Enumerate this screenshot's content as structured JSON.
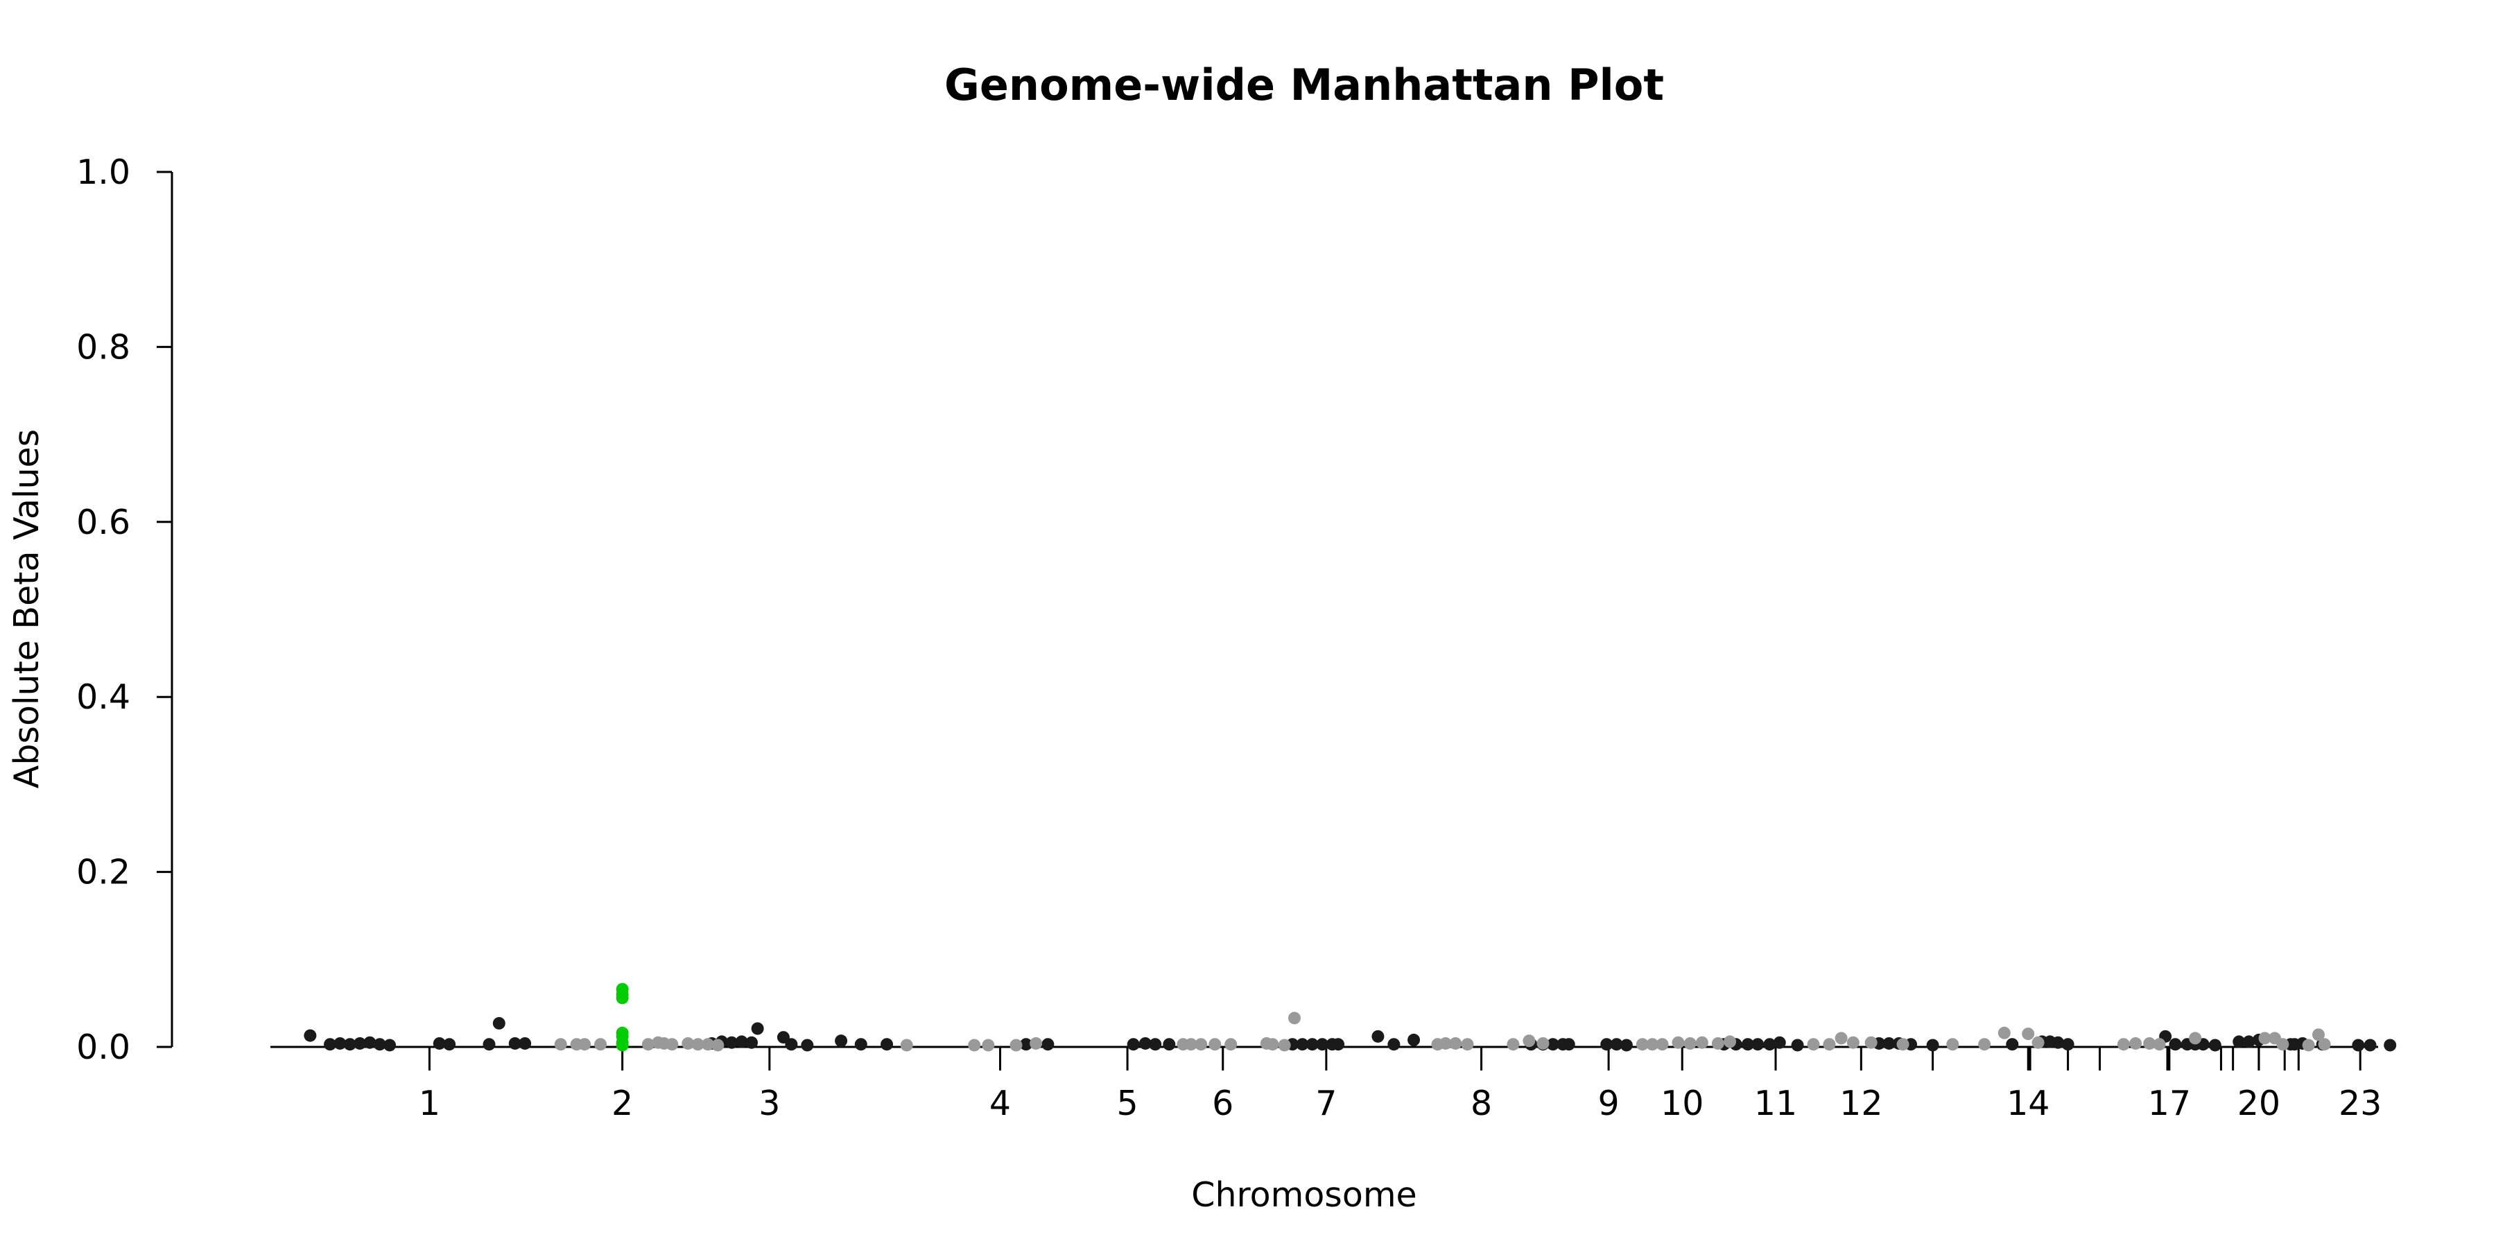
{
  "chart_data": {
    "type": "scatter",
    "title": "Genome-wide Manhattan Plot",
    "xlabel": "Chromosome",
    "ylabel": "Absolute Beta Values",
    "ylim": [
      0,
      1
    ],
    "yticks": [
      "0.0",
      "0.2",
      "0.4",
      "0.6",
      "0.8",
      "1.0"
    ],
    "xlim": [
      0,
      1200
    ],
    "grid": false,
    "legend": "none",
    "colors": {
      "odd": "#1a1a1a",
      "even": "#999999",
      "highlight": "#00cc00"
    },
    "chromosome_ticks": [
      {
        "label": "1",
        "pos": 30
      },
      {
        "label": "2",
        "pos": 127
      },
      {
        "label": "3",
        "pos": 201
      },
      {
        "label": "4",
        "pos": 317
      },
      {
        "label": "5",
        "pos": 381
      },
      {
        "label": "6",
        "pos": 429
      },
      {
        "label": "7",
        "pos": 481
      },
      {
        "label": "8",
        "pos": 559
      },
      {
        "label": "9",
        "pos": 623
      },
      {
        "label": "10",
        "pos": 660
      },
      {
        "label": "11",
        "pos": 707
      },
      {
        "label": "12",
        "pos": 750
      },
      {
        "label": "",
        "pos": 786
      },
      {
        "label": "",
        "pos": 835
      },
      {
        "label": "14",
        "pos": 834
      },
      {
        "label": "",
        "pos": 854
      },
      {
        "label": "",
        "pos": 870
      },
      {
        "label": "",
        "pos": 904
      },
      {
        "label": "17",
        "pos": 905
      },
      {
        "label": "",
        "pos": 931
      },
      {
        "label": "",
        "pos": 937
      },
      {
        "label": "",
        "pos": 950
      },
      {
        "label": "20",
        "pos": 950
      },
      {
        "label": "",
        "pos": 963
      },
      {
        "label": "",
        "pos": 970
      },
      {
        "label": "23",
        "pos": 1001
      }
    ],
    "series": [
      {
        "color_role": "odd",
        "points": [
          [
            -30,
            0.013
          ],
          [
            -20,
            0.003
          ],
          [
            -15,
            0.004
          ],
          [
            -10,
            0.003
          ],
          [
            -5,
            0.004
          ],
          [
            0,
            0.005
          ],
          [
            5,
            0.003
          ],
          [
            10,
            0.002
          ],
          [
            35,
            0.004
          ],
          [
            40,
            0.003
          ],
          [
            60,
            0.003
          ],
          [
            65,
            0.027
          ],
          [
            73,
            0.004
          ],
          [
            78,
            0.004
          ],
          [
            172,
            0.004
          ],
          [
            177,
            0.006
          ],
          [
            182,
            0.005
          ],
          [
            187,
            0.006
          ],
          [
            192,
            0.005
          ],
          [
            195,
            0.021
          ],
          [
            208,
            0.011
          ],
          [
            212,
            0.003
          ],
          [
            220,
            0.002
          ],
          [
            237,
            0.007
          ],
          [
            247,
            0.003
          ],
          [
            260,
            0.003
          ],
          [
            330,
            0.003
          ],
          [
            341,
            0.003
          ],
          [
            402,
            0.003
          ],
          [
            384,
            0.003
          ],
          [
            390,
            0.004
          ],
          [
            395,
            0.003
          ],
          [
            464,
            0.003
          ],
          [
            469,
            0.003
          ],
          [
            474,
            0.003
          ],
          [
            479,
            0.003
          ],
          [
            484,
            0.003
          ],
          [
            487,
            0.003
          ],
          [
            507,
            0.012
          ],
          [
            515,
            0.003
          ],
          [
            525,
            0.008
          ],
          [
            584,
            0.003
          ],
          [
            590,
            0.003
          ],
          [
            595,
            0.003
          ],
          [
            600,
            0.003
          ],
          [
            603,
            0.003
          ],
          [
            622,
            0.003
          ],
          [
            627,
            0.003
          ],
          [
            632,
            0.002
          ],
          [
            681,
            0.003
          ],
          [
            687,
            0.003
          ],
          [
            693,
            0.003
          ],
          [
            698,
            0.003
          ],
          [
            704,
            0.003
          ],
          [
            709,
            0.005
          ],
          [
            718,
            0.002
          ],
          [
            759,
            0.004
          ],
          [
            764,
            0.004
          ],
          [
            769,
            0.004
          ],
          [
            775,
            0.003
          ],
          [
            786,
            0.002
          ],
          [
            826,
            0.003
          ],
          [
            841,
            0.006
          ],
          [
            845,
            0.006
          ],
          [
            849,
            0.005
          ],
          [
            854,
            0.003
          ],
          [
            903,
            0.012
          ],
          [
            908,
            0.003
          ],
          [
            914,
            0.003
          ],
          [
            918,
            0.003
          ],
          [
            922,
            0.003
          ],
          [
            928,
            0.002
          ],
          [
            940,
            0.006
          ],
          [
            945,
            0.006
          ],
          [
            950,
            0.008
          ],
          [
            966,
            0.003
          ],
          [
            968,
            0.003
          ],
          [
            972,
            0.004
          ],
          [
            982,
            0.003
          ],
          [
            1000,
            0.002
          ],
          [
            1006,
            0.002
          ],
          [
            1016,
            0.002
          ]
        ]
      },
      {
        "color_role": "even",
        "points": [
          [
            96,
            0.003
          ],
          [
            104,
            0.003
          ],
          [
            108,
            0.003
          ],
          [
            116,
            0.003
          ],
          [
            140,
            0.003
          ],
          [
            145,
            0.005
          ],
          [
            148,
            0.004
          ],
          [
            152,
            0.003
          ],
          [
            160,
            0.004
          ],
          [
            165,
            0.003
          ],
          [
            170,
            0.003
          ],
          [
            175,
            0.002
          ],
          [
            270,
            0.002
          ],
          [
            304,
            0.002
          ],
          [
            311,
            0.002
          ],
          [
            325,
            0.002
          ],
          [
            335,
            0.004
          ],
          [
            425,
            0.003
          ],
          [
            433,
            0.003
          ],
          [
            409,
            0.003
          ],
          [
            413,
            0.003
          ],
          [
            418,
            0.003
          ],
          [
            451,
            0.004
          ],
          [
            454,
            0.003
          ],
          [
            460,
            0.002
          ],
          [
            465,
            0.033
          ],
          [
            537,
            0.003
          ],
          [
            541,
            0.004
          ],
          [
            546,
            0.004
          ],
          [
            552,
            0.003
          ],
          [
            575,
            0.003
          ],
          [
            583,
            0.007
          ],
          [
            590,
            0.004
          ],
          [
            640,
            0.003
          ],
          [
            645,
            0.003
          ],
          [
            650,
            0.003
          ],
          [
            658,
            0.005
          ],
          [
            664,
            0.004
          ],
          [
            670,
            0.005
          ],
          [
            678,
            0.004
          ],
          [
            684,
            0.006
          ],
          [
            726,
            0.003
          ],
          [
            734,
            0.003
          ],
          [
            740,
            0.01
          ],
          [
            746,
            0.005
          ],
          [
            755,
            0.005
          ],
          [
            771,
            0.003
          ],
          [
            796,
            0.003
          ],
          [
            812,
            0.003
          ],
          [
            822,
            0.016
          ],
          [
            834,
            0.015
          ],
          [
            839,
            0.005
          ],
          [
            882,
            0.003
          ],
          [
            888,
            0.004
          ],
          [
            895,
            0.004
          ],
          [
            900,
            0.003
          ],
          [
            918,
            0.01
          ],
          [
            953,
            0.01
          ],
          [
            958,
            0.01
          ],
          [
            962,
            0.003
          ],
          [
            975,
            0.002
          ],
          [
            980,
            0.014
          ],
          [
            983,
            0.003
          ]
        ]
      },
      {
        "color_role": "highlight",
        "points": [
          [
            127,
            0.066
          ],
          [
            127,
            0.06
          ],
          [
            127,
            0.056
          ],
          [
            127,
            0.016
          ],
          [
            127,
            0.012
          ],
          [
            127,
            0.005
          ],
          [
            127,
            0.002
          ]
        ]
      }
    ]
  }
}
